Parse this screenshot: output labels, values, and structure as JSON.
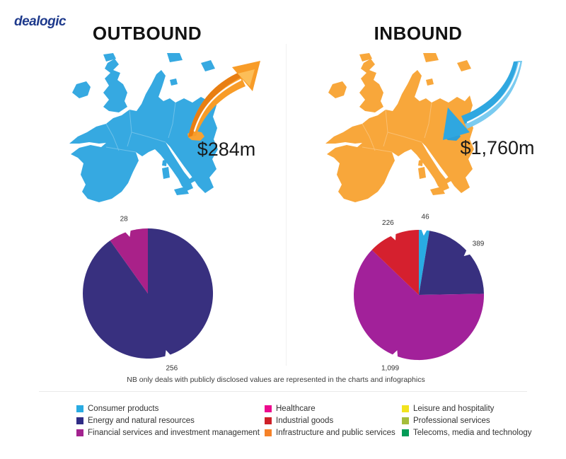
{
  "logo": {
    "text": "dealogic",
    "color": "#1E3A8C"
  },
  "panels": {
    "outbound": {
      "title": "OUTBOUND",
      "value": "$284m",
      "map_color": "#36A9E1",
      "highlight_color": "#F7A233",
      "arrow": {
        "main": "#F89C28",
        "dark": "#E87E12",
        "light": "#FCBE58"
      }
    },
    "inbound": {
      "title": "INBOUND",
      "value": "$1,760m",
      "map_color": "#F8A73B",
      "highlight_color": "#2D9FD8",
      "arrow": {
        "main": "#2FA7E0",
        "dark": "#1B85BE",
        "light": "#7ACBF0"
      }
    }
  },
  "note": "NB only deals with publicly disclosed values are represented in the charts and infographics",
  "chart_data": [
    {
      "type": "pie",
      "name": "outbound-deal-value-by-sector",
      "total": 284,
      "slices": [
        {
          "name": "Energy and natural resources",
          "value": 256,
          "display": "256",
          "color": "#38307F"
        },
        {
          "name": "Financial services and investment management",
          "value": 28,
          "display": "28",
          "color": "#A92189"
        }
      ]
    },
    {
      "type": "pie",
      "name": "inbound-deal-value-by-sector",
      "total": 1760,
      "slices": [
        {
          "name": "Consumer products",
          "value": 46,
          "display": "46",
          "color": "#29ABE2"
        },
        {
          "name": "Energy and natural resources",
          "value": 389,
          "display": "389",
          "color": "#38307F"
        },
        {
          "name": "Financial services and investment management",
          "value": 1099,
          "display": "1,099",
          "color": "#A2219A"
        },
        {
          "name": "Industrial goods",
          "value": 226,
          "display": "226",
          "color": "#D5202E"
        }
      ]
    }
  ],
  "legend": {
    "items": [
      {
        "label": "Consumer products",
        "color": "#29ABE2"
      },
      {
        "label": "Energy and natural resources",
        "color": "#2F2C85"
      },
      {
        "label": "Financial services and investment management",
        "color": "#A3238F"
      },
      {
        "label": "Healthcare",
        "color": "#EC0A8E"
      },
      {
        "label": "Industrial goods",
        "color": "#CE2028"
      },
      {
        "label": "Infrastructure and public services",
        "color": "#F58229"
      },
      {
        "label": "Leisure and hospitality",
        "color": "#F2E31E"
      },
      {
        "label": "Professional services",
        "color": "#A5BD3B"
      },
      {
        "label": "Telecoms, media and technology",
        "color": "#029B57"
      }
    ]
  }
}
